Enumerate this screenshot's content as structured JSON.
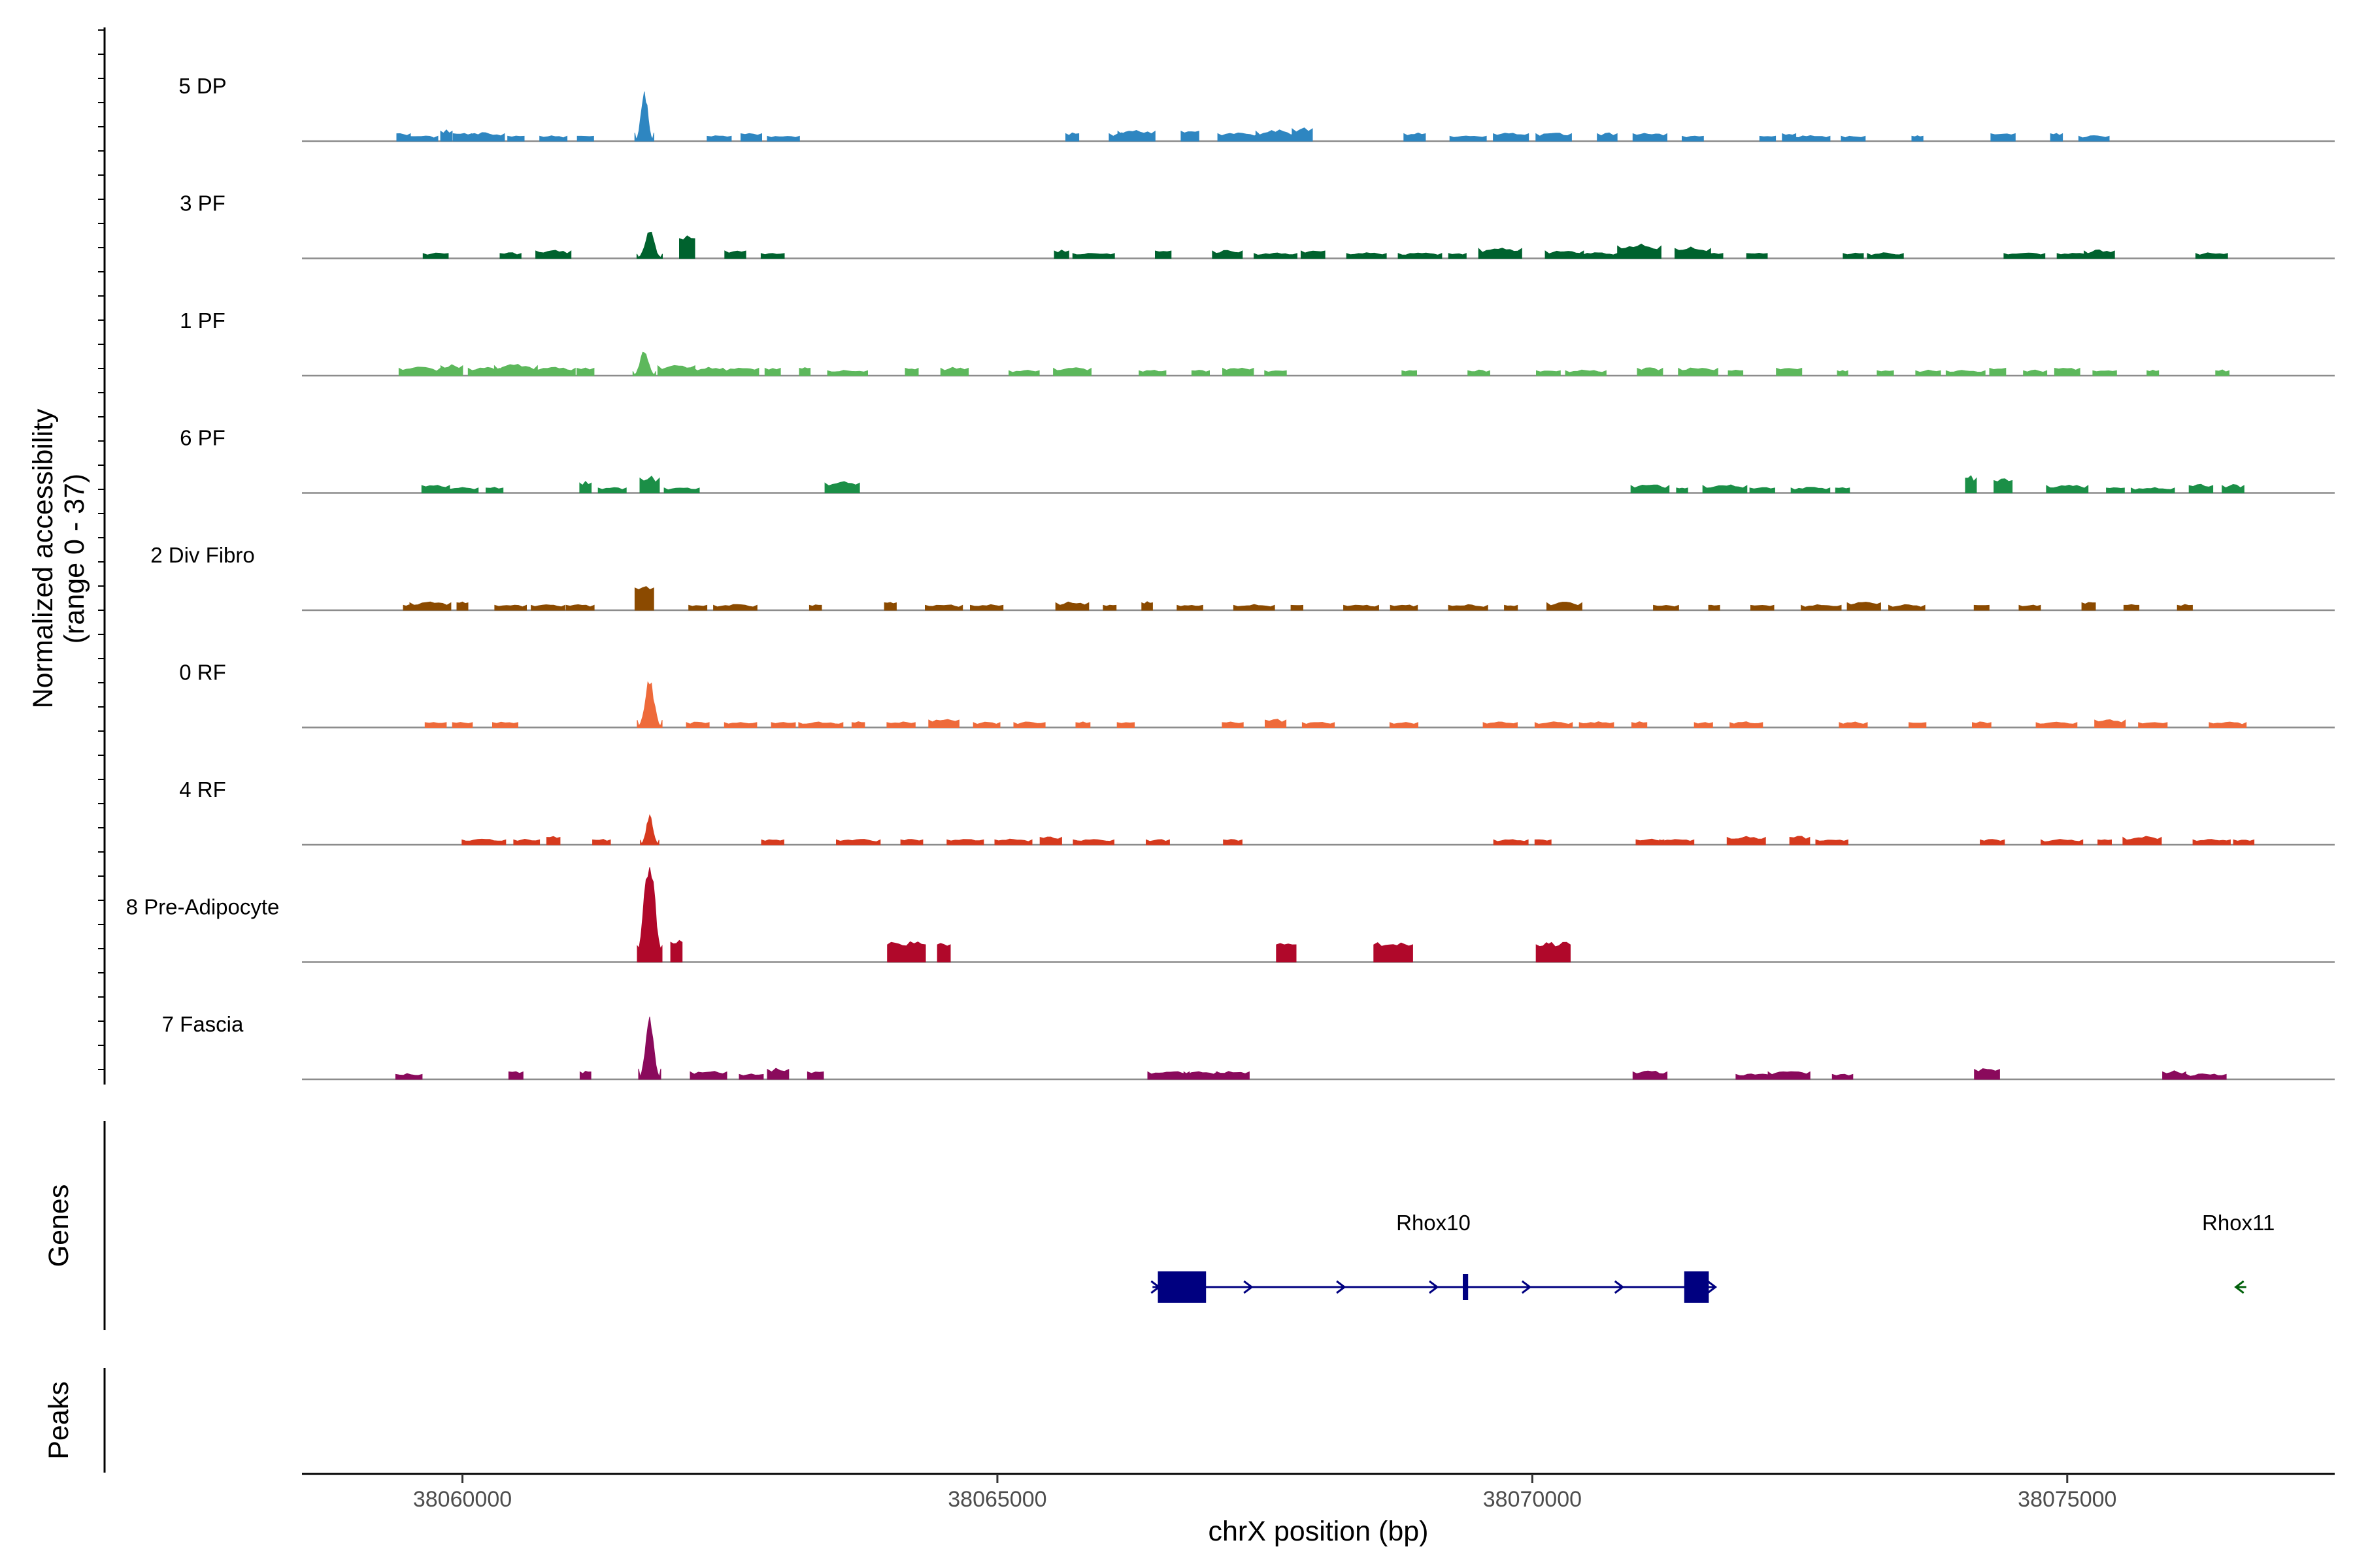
{
  "chart_data": {
    "type": "area",
    "title": "",
    "ylabel": "Normalized accessibility",
    "ylabel_range": "(range 0 - 37)",
    "xlabel": "chrX position (bp)",
    "ylim": [
      0,
      37
    ],
    "xlim": [
      38058500,
      38077500
    ],
    "x_ticks": [
      38060000,
      38065000,
      38070000,
      38075000
    ],
    "x_tick_labels": [
      "38060000",
      "38065000",
      "38070000",
      "38075000"
    ],
    "panel_labels": {
      "genes": "Genes",
      "peaks": "Peaks"
    },
    "tracks": [
      {
        "name": "5 DP",
        "color": "#2E86C1",
        "summit": 19,
        "peaks": [
          [
            38059450,
            3
          ],
          [
            38059600,
            2
          ],
          [
            38059850,
            4
          ],
          [
            38060000,
            3
          ],
          [
            38060200,
            3
          ],
          [
            38060500,
            2
          ],
          [
            38060850,
            2
          ],
          [
            38061150,
            2
          ],
          [
            38061700,
            19
          ],
          [
            38062400,
            2
          ],
          [
            38062700,
            3
          ],
          [
            38063000,
            2
          ],
          [
            38065700,
            3
          ],
          [
            38066200,
            3
          ],
          [
            38066300,
            4
          ],
          [
            38066800,
            4
          ],
          [
            38067250,
            3
          ],
          [
            38067600,
            4
          ],
          [
            38067850,
            5
          ],
          [
            38068900,
            3
          ],
          [
            38069400,
            2
          ],
          [
            38069800,
            3
          ],
          [
            38070200,
            3
          ],
          [
            38070700,
            3
          ],
          [
            38071100,
            3
          ],
          [
            38071500,
            2
          ],
          [
            38072200,
            2
          ],
          [
            38072400,
            3
          ],
          [
            38072600,
            2
          ],
          [
            38073000,
            2
          ],
          [
            38073600,
            2
          ],
          [
            38074400,
            3
          ],
          [
            38074900,
            3
          ],
          [
            38075250,
            2
          ]
        ]
      },
      {
        "name": "3 PF",
        "color": "#00622E",
        "summit": 11,
        "peaks": [
          [
            38059750,
            2
          ],
          [
            38060450,
            2
          ],
          [
            38060850,
            3
          ],
          [
            38061750,
            10
          ],
          [
            38062100,
            8
          ],
          [
            38062550,
            3
          ],
          [
            38062900,
            2
          ],
          [
            38065600,
            3
          ],
          [
            38065900,
            2
          ],
          [
            38066550,
            3
          ],
          [
            38067150,
            3
          ],
          [
            38067600,
            2
          ],
          [
            38067950,
            3
          ],
          [
            38068450,
            2
          ],
          [
            38068950,
            2
          ],
          [
            38069300,
            2
          ],
          [
            38069700,
            4
          ],
          [
            38070300,
            3
          ],
          [
            38070600,
            2
          ],
          [
            38071000,
            5
          ],
          [
            38071500,
            4
          ],
          [
            38071700,
            2
          ],
          [
            38072100,
            2
          ],
          [
            38073000,
            2
          ],
          [
            38073300,
            2
          ],
          [
            38074600,
            2
          ],
          [
            38075100,
            2
          ],
          [
            38075300,
            3
          ],
          [
            38076350,
            2
          ]
        ]
      },
      {
        "name": "1 PF",
        "color": "#5DB85C",
        "summit": 10,
        "peaks": [
          [
            38059600,
            3
          ],
          [
            38059900,
            4
          ],
          [
            38060200,
            3
          ],
          [
            38060500,
            4
          ],
          [
            38060850,
            3
          ],
          [
            38061150,
            3
          ],
          [
            38061700,
            10
          ],
          [
            38062000,
            4
          ],
          [
            38062300,
            3
          ],
          [
            38062600,
            3
          ],
          [
            38062900,
            3
          ],
          [
            38063200,
            3
          ],
          [
            38063600,
            2
          ],
          [
            38064200,
            3
          ],
          [
            38064600,
            3
          ],
          [
            38065250,
            2
          ],
          [
            38065700,
            3
          ],
          [
            38066450,
            2
          ],
          [
            38066900,
            2
          ],
          [
            38067250,
            3
          ],
          [
            38067600,
            2
          ],
          [
            38068850,
            2
          ],
          [
            38069500,
            2
          ],
          [
            38070150,
            2
          ],
          [
            38070500,
            2
          ],
          [
            38071100,
            3
          ],
          [
            38071550,
            3
          ],
          [
            38071900,
            2
          ],
          [
            38072400,
            3
          ],
          [
            38072900,
            2
          ],
          [
            38073300,
            2
          ],
          [
            38073700,
            2
          ],
          [
            38074050,
            2
          ],
          [
            38074350,
            3
          ],
          [
            38074700,
            2
          ],
          [
            38075000,
            3
          ],
          [
            38075350,
            2
          ],
          [
            38075800,
            2
          ],
          [
            38076450,
            2
          ]
        ]
      },
      {
        "name": "6 PF",
        "color": "#1B8F47",
        "summit": 7,
        "peaks": [
          [
            38059750,
            3
          ],
          [
            38060000,
            2
          ],
          [
            38060300,
            2
          ],
          [
            38061150,
            4
          ],
          [
            38061400,
            2
          ],
          [
            38061750,
            6
          ],
          [
            38062050,
            2
          ],
          [
            38063550,
            4
          ],
          [
            38071100,
            3
          ],
          [
            38071400,
            2
          ],
          [
            38071800,
            3
          ],
          [
            38072150,
            2
          ],
          [
            38072600,
            2
          ],
          [
            38072900,
            2
          ],
          [
            38074100,
            6
          ],
          [
            38074400,
            5
          ],
          [
            38075000,
            3
          ],
          [
            38075450,
            2
          ],
          [
            38075800,
            2
          ],
          [
            38076250,
            3
          ],
          [
            38076550,
            3
          ]
        ]
      },
      {
        "name": "2 Div Fibro",
        "color": "#8B4A00",
        "summit": 10,
        "peaks": [
          [
            38059500,
            2
          ],
          [
            38059700,
            3
          ],
          [
            38060000,
            3
          ],
          [
            38060450,
            2
          ],
          [
            38060800,
            2
          ],
          [
            38061100,
            2
          ],
          [
            38061700,
            9
          ],
          [
            38062200,
            2
          ],
          [
            38062550,
            2
          ],
          [
            38063300,
            2
          ],
          [
            38064000,
            3
          ],
          [
            38064500,
            2
          ],
          [
            38064900,
            2
          ],
          [
            38065700,
            3
          ],
          [
            38066050,
            2
          ],
          [
            38066400,
            3
          ],
          [
            38066800,
            2
          ],
          [
            38067400,
            2
          ],
          [
            38067800,
            2
          ],
          [
            38068400,
            2
          ],
          [
            38068800,
            2
          ],
          [
            38069400,
            2
          ],
          [
            38069800,
            2
          ],
          [
            38070300,
            3
          ],
          [
            38071250,
            2
          ],
          [
            38071700,
            2
          ],
          [
            38072150,
            2
          ],
          [
            38072700,
            2
          ],
          [
            38073100,
            3
          ],
          [
            38073500,
            2
          ],
          [
            38074200,
            2
          ],
          [
            38074650,
            2
          ],
          [
            38075200,
            3
          ],
          [
            38075600,
            2
          ],
          [
            38076100,
            2
          ]
        ]
      },
      {
        "name": "0 RF",
        "color": "#EE6A3A",
        "summit": 17,
        "peaks": [
          [
            38059750,
            2
          ],
          [
            38060000,
            2
          ],
          [
            38060400,
            2
          ],
          [
            38061750,
            17
          ],
          [
            38062200,
            2
          ],
          [
            38062600,
            2
          ],
          [
            38063000,
            2
          ],
          [
            38063350,
            2
          ],
          [
            38063700,
            2
          ],
          [
            38064100,
            2
          ],
          [
            38064500,
            3
          ],
          [
            38064900,
            2
          ],
          [
            38065300,
            2
          ],
          [
            38065800,
            2
          ],
          [
            38066200,
            2
          ],
          [
            38067200,
            2
          ],
          [
            38067600,
            3
          ],
          [
            38068000,
            2
          ],
          [
            38068800,
            2
          ],
          [
            38069700,
            2
          ],
          [
            38070200,
            2
          ],
          [
            38070600,
            2
          ],
          [
            38071000,
            2
          ],
          [
            38071600,
            2
          ],
          [
            38072000,
            2
          ],
          [
            38073000,
            2
          ],
          [
            38073600,
            2
          ],
          [
            38074200,
            2
          ],
          [
            38074900,
            2
          ],
          [
            38075400,
            3
          ],
          [
            38075800,
            2
          ],
          [
            38076500,
            2
          ]
        ]
      },
      {
        "name": "4 RF",
        "color": "#D63A1E",
        "summit": 12,
        "peaks": [
          [
            38060200,
            2
          ],
          [
            38060600,
            2
          ],
          [
            38060850,
            3
          ],
          [
            38061300,
            2
          ],
          [
            38061750,
            11
          ],
          [
            38062900,
            2
          ],
          [
            38063700,
            2
          ],
          [
            38064200,
            2
          ],
          [
            38064700,
            2
          ],
          [
            38065150,
            2
          ],
          [
            38065500,
            3
          ],
          [
            38065900,
            2
          ],
          [
            38066500,
            2
          ],
          [
            38067200,
            2
          ],
          [
            38069800,
            2
          ],
          [
            38070100,
            2
          ],
          [
            38071100,
            2
          ],
          [
            38071350,
            2
          ],
          [
            38072000,
            3
          ],
          [
            38072500,
            3
          ],
          [
            38072800,
            2
          ],
          [
            38074300,
            2
          ],
          [
            38074950,
            2
          ],
          [
            38075350,
            2
          ],
          [
            38075700,
            3
          ],
          [
            38076350,
            2
          ],
          [
            38076650,
            2
          ]
        ]
      },
      {
        "name": "8 Pre-Adipocyte",
        "color": "#B0082A",
        "summit": 37,
        "peaks": [
          [
            38061750,
            37
          ],
          [
            38062000,
            8
          ],
          [
            38064150,
            7
          ],
          [
            38064500,
            7
          ],
          [
            38067700,
            7
          ],
          [
            38068700,
            7
          ],
          [
            38070100,
            7
          ],
          [
            38070250,
            7
          ]
        ]
      },
      {
        "name": "7 Fascia",
        "color": "#8A0A5C",
        "summit": 24,
        "peaks": [
          [
            38059500,
            2
          ],
          [
            38060500,
            3
          ],
          [
            38061150,
            3
          ],
          [
            38061750,
            24
          ],
          [
            38062300,
            3
          ],
          [
            38062700,
            2
          ],
          [
            38062950,
            4
          ],
          [
            38063300,
            3
          ],
          [
            38066600,
            3
          ],
          [
            38066900,
            3
          ],
          [
            38067200,
            3
          ],
          [
            38071100,
            3
          ],
          [
            38072100,
            2
          ],
          [
            38072400,
            3
          ],
          [
            38072900,
            2
          ],
          [
            38074250,
            4
          ],
          [
            38076000,
            3
          ],
          [
            38076300,
            2
          ]
        ]
      }
    ],
    "genes": [
      {
        "name": "Rhox10",
        "color": "#000080",
        "strand": "+",
        "start": 38066450,
        "end": 38071700,
        "exons": [
          [
            38066500,
            38066950
          ],
          [
            38069350,
            38069400
          ],
          [
            38071420,
            38071650
          ]
        ]
      },
      {
        "name": "Rhox11",
        "color": "#00600A",
        "strand": "-",
        "start": 38076550,
        "end": 38076650,
        "exons": []
      }
    ]
  }
}
